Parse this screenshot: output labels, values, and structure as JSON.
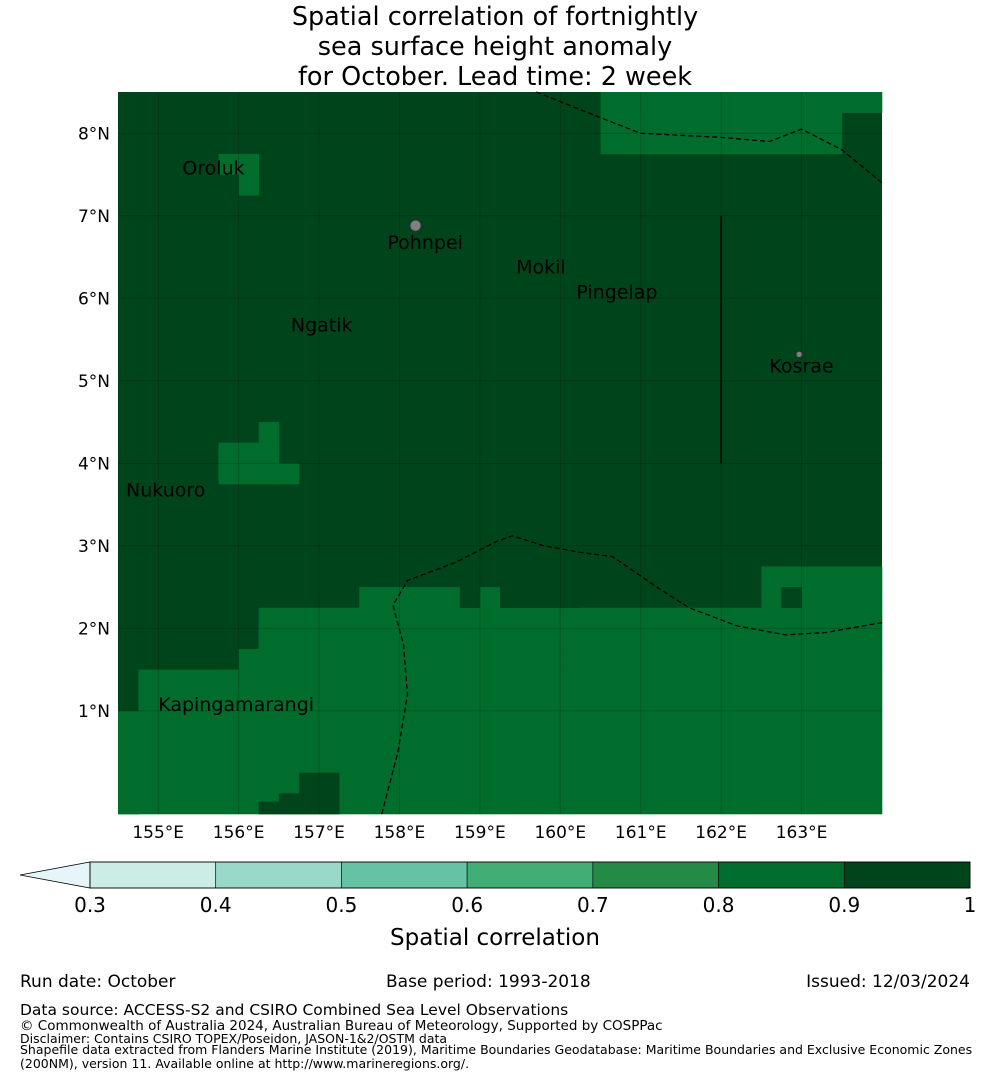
{
  "title": {
    "line1": "Spatial correlation of fortnightly",
    "line2": "sea surface height anomaly",
    "line3": "for October. Lead time: 2 week"
  },
  "map": {
    "lon_range": [
      154.5,
      164.0
    ],
    "lat_range": [
      -0.25,
      8.5
    ],
    "background_value": 0.95,
    "colors": {
      "bin_0_3_0_4": "#ccece6",
      "bin_0_4_0_5": "#99d8c9",
      "bin_0_5_0_6": "#66c2a4",
      "bin_0_6_0_7": "#41ae76",
      "bin_0_7_0_8": "#238b45",
      "bin_0_8_0_9": "#006d2c",
      "bin_0_9_1_0": "#00441b",
      "under": "#e5f5f9",
      "land": "#808080",
      "grid": "#1a4a2a"
    },
    "lon_ticks": [
      {
        "value": 155,
        "label": "155°E"
      },
      {
        "value": 156,
        "label": "156°E"
      },
      {
        "value": 157,
        "label": "157°E"
      },
      {
        "value": 158,
        "label": "158°E"
      },
      {
        "value": 159,
        "label": "159°E"
      },
      {
        "value": 160,
        "label": "160°E"
      },
      {
        "value": 161,
        "label": "161°E"
      },
      {
        "value": 162,
        "label": "162°E"
      },
      {
        "value": 163,
        "label": "163°E"
      }
    ],
    "lat_ticks": [
      {
        "value": 8,
        "label": "8°N"
      },
      {
        "value": 7,
        "label": "7°N"
      },
      {
        "value": 6,
        "label": "6°N"
      },
      {
        "value": 5,
        "label": "5°N"
      },
      {
        "value": 4,
        "label": "4°N"
      },
      {
        "value": 3,
        "label": "3°N"
      },
      {
        "value": 2,
        "label": "2°N"
      },
      {
        "value": 1,
        "label": "1°N"
      }
    ],
    "cells_0_8_0_9": [
      [
        154.5,
        164.0,
        -0.25,
        1.5
      ],
      [
        156.0,
        164.0,
        1.5,
        1.75
      ],
      [
        155.75,
        156.0,
        1.25,
        1.5
      ],
      [
        155.5,
        155.75,
        1.0,
        1.25
      ],
      [
        155.25,
        155.5,
        0.75,
        1.0
      ],
      [
        155.0,
        155.25,
        0.5,
        0.75
      ],
      [
        154.75,
        155.0,
        0.25,
        0.5
      ],
      [
        154.5,
        154.75,
        -0.25,
        0.25
      ],
      [
        156.25,
        157.0,
        1.75,
        2.0
      ],
      [
        156.25,
        164.0,
        1.75,
        2.25
      ],
      [
        157.5,
        158.75,
        2.25,
        2.5
      ],
      [
        159.0,
        159.25,
        2.25,
        2.5
      ],
      [
        162.5,
        164.0,
        2.25,
        2.75
      ],
      [
        155.75,
        156.5,
        3.75,
        4.25
      ],
      [
        156.5,
        156.75,
        3.75,
        4.0
      ],
      [
        156.25,
        156.5,
        4.25,
        4.5
      ],
      [
        156.0,
        156.25,
        7.25,
        7.75
      ],
      [
        155.75,
        156.0,
        7.5,
        7.75
      ],
      [
        160.5,
        163.5,
        7.75,
        8.5
      ],
      [
        160.75,
        163.0,
        7.75,
        8.0
      ],
      [
        162.0,
        163.5,
        8.0,
        8.25
      ],
      [
        163.0,
        163.75,
        8.25,
        8.5
      ],
      [
        163.75,
        164.0,
        8.25,
        8.5
      ],
      [
        161.0,
        161.5,
        8.25,
        8.5
      ]
    ],
    "cells_0_9_1_0": [
      [
        154.5,
        155.0,
        2.0,
        2.25
      ],
      [
        154.5,
        154.75,
        1.0,
        2.0
      ],
      [
        156.5,
        157.25,
        -0.25,
        0.0
      ],
      [
        156.25,
        156.5,
        -0.25,
        -0.1
      ],
      [
        156.75,
        157.25,
        0.0,
        0.25
      ],
      [
        158.75,
        159.0,
        2.25,
        2.5
      ],
      [
        159.25,
        160.25,
        2.25,
        2.5
      ],
      [
        162.75,
        163.0,
        2.25,
        2.5
      ]
    ],
    "dashed_lines": [
      [
        [
          159.7,
          8.5
        ],
        [
          160.6,
          8.15
        ],
        [
          161.0,
          8.0
        ],
        [
          162.0,
          7.95
        ],
        [
          162.6,
          7.9
        ],
        [
          163.0,
          8.05
        ],
        [
          163.5,
          7.8
        ],
        [
          164.0,
          7.4
        ]
      ],
      [
        [
          157.78,
          -0.25
        ],
        [
          157.98,
          0.5
        ],
        [
          158.1,
          1.2
        ],
        [
          158.05,
          1.8
        ],
        [
          157.92,
          2.28
        ],
        [
          158.1,
          2.58
        ],
        [
          158.7,
          2.8
        ],
        [
          159.2,
          3.05
        ],
        [
          159.4,
          3.12
        ],
        [
          159.8,
          3.0
        ],
        [
          160.25,
          2.92
        ],
        [
          160.65,
          2.87
        ],
        [
          161.2,
          2.5
        ],
        [
          161.6,
          2.25
        ],
        [
          162.2,
          2.03
        ],
        [
          162.8,
          1.92
        ],
        [
          163.3,
          1.95
        ],
        [
          164.0,
          2.07
        ]
      ]
    ],
    "solid_lines": [
      [
        [
          162.0,
          4.0
        ],
        [
          162.0,
          7.0
        ]
      ]
    ],
    "islands": [
      {
        "name": "pohnpei-island",
        "lon": 158.2,
        "lat": 6.88,
        "size": 9
      },
      {
        "name": "kosrae-island",
        "lon": 162.97,
        "lat": 5.32,
        "size": 5
      }
    ],
    "places": [
      {
        "name": "Oroluk",
        "lon": 155.3,
        "lat": 7.5
      },
      {
        "name": "Pohnpei",
        "lon": 157.85,
        "lat": 6.6
      },
      {
        "name": "Mokil",
        "lon": 159.45,
        "lat": 6.3
      },
      {
        "name": "Pingelap",
        "lon": 160.2,
        "lat": 6.0
      },
      {
        "name": "Ngatik",
        "lon": 156.65,
        "lat": 5.6
      },
      {
        "name": "Kosrae",
        "lon": 162.6,
        "lat": 5.1
      },
      {
        "name": "Nukuoro",
        "lon": 154.6,
        "lat": 3.6
      },
      {
        "name": "Kapingamarangi",
        "lon": 155.0,
        "lat": 1.0
      }
    ]
  },
  "colorbar": {
    "label": "Spatial correlation",
    "ticks": [
      "0.3",
      "0.4",
      "0.5",
      "0.6",
      "0.7",
      "0.8",
      "0.9",
      "1"
    ],
    "bins": [
      {
        "from": 0.3,
        "to": 0.4,
        "color": "#ccece6"
      },
      {
        "from": 0.4,
        "to": 0.5,
        "color": "#99d8c9"
      },
      {
        "from": 0.5,
        "to": 0.6,
        "color": "#66c2a4"
      },
      {
        "from": 0.6,
        "to": 0.7,
        "color": "#41ae76"
      },
      {
        "from": 0.7,
        "to": 0.8,
        "color": "#238b45"
      },
      {
        "from": 0.8,
        "to": 0.9,
        "color": "#006d2c"
      },
      {
        "from": 0.9,
        "to": 1.0,
        "color": "#00441b"
      }
    ],
    "under_color": "#e5f5f9"
  },
  "footer": {
    "run_date": "Run date: October",
    "base_period": "Base period: 1993-2018",
    "issued": "Issued: 12/03/2024",
    "data_source": "Data source: ACCESS-S2 and CSIRO Combined Sea Level Observations",
    "copyright": "© Commonwealth of Australia 2024, Australian Bureau of Meteorology, Supported by COSPPac",
    "disclaimer": "Disclaimer: Contains CSIRO TOPEX/Poseidon, JASON-1&2/OSTM data",
    "shapefile1": "Shapefile data extracted from Flanders Marine Institute (2019), Maritime Boundaries Geodatabase: Maritime Boundaries and Exclusive Economic Zones",
    "shapefile2": "(200NM), version 11. Available online at http://www.marineregions.org/."
  }
}
